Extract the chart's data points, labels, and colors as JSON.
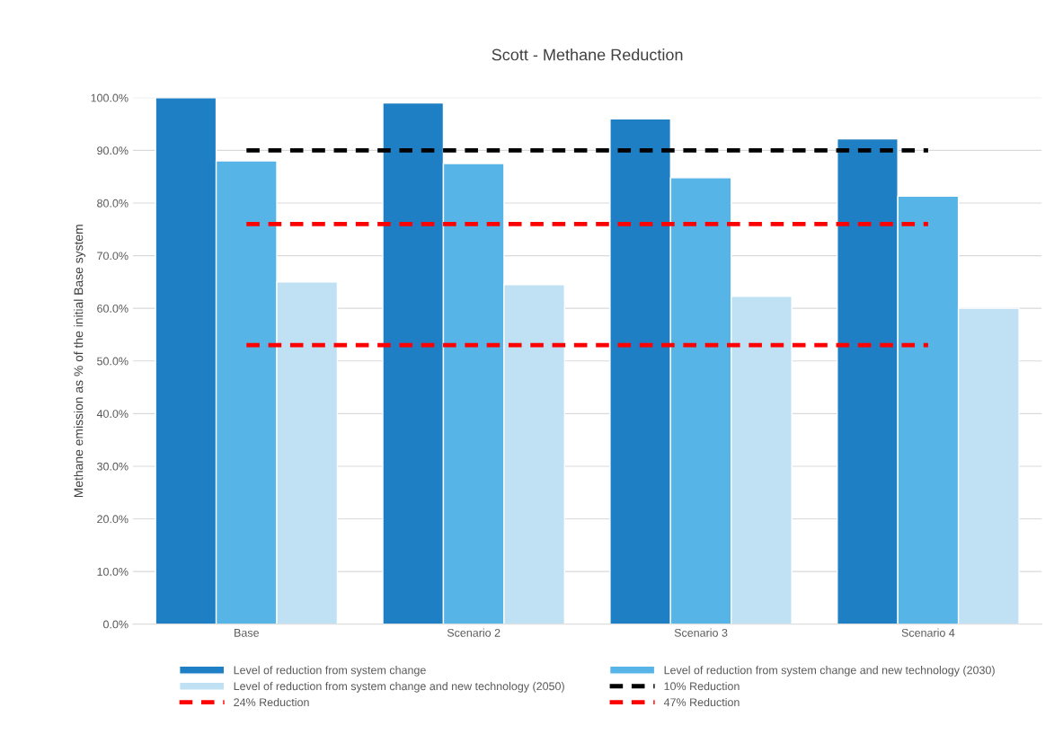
{
  "chart_data": {
    "type": "bar",
    "title": "Scott - Methane Reduction",
    "ylabel": "Methane emission as % of the initial Base system",
    "categories": [
      "Base",
      "Scenario 2",
      "Scenario 3",
      "Scenario 4"
    ],
    "series": [
      {
        "name": "Level of reduction from system change",
        "color": "#1f7fc4",
        "values": [
          100,
          99,
          96,
          92.2
        ]
      },
      {
        "name": "Level of reduction from system change and new technology (2030)",
        "color": "#56b4e6",
        "values": [
          88,
          87.5,
          84.8,
          81.3
        ]
      },
      {
        "name": "Level of reduction from system change and new technology (2050)",
        "color": "#bfe1f3",
        "values": [
          65,
          64.5,
          62.3,
          60
        ]
      },
      {
        "name": "10% Reduction",
        "type": "line",
        "color": "#000000",
        "line_style": "dashed",
        "values": [
          90,
          90,
          90,
          90
        ]
      },
      {
        "name": "24% Reduction",
        "type": "line",
        "color": "#ff0000",
        "line_style": "dashed",
        "values": [
          76,
          76,
          76,
          76
        ]
      },
      {
        "name": "47% Reduction",
        "type": "line",
        "color": "#ff0000",
        "line_style": "dashed",
        "values": [
          53,
          53,
          53,
          53
        ]
      }
    ],
    "ylim": [
      0,
      100
    ],
    "yticks": [
      {
        "value": 0,
        "label": "0.0%"
      },
      {
        "value": 10,
        "label": "10.0%"
      },
      {
        "value": 20,
        "label": "20.0%"
      },
      {
        "value": 30,
        "label": "30.0%"
      },
      {
        "value": 40,
        "label": "40.0%"
      },
      {
        "value": 50,
        "label": "50.0%"
      },
      {
        "value": 60,
        "label": "60.0%"
      },
      {
        "value": 70,
        "label": "70.0%"
      },
      {
        "value": 80,
        "label": "80.0%"
      },
      {
        "value": 90,
        "label": "90.0%"
      },
      {
        "value": 100,
        "label": "100.0%"
      }
    ],
    "grid": "y",
    "legend": "bottom"
  }
}
